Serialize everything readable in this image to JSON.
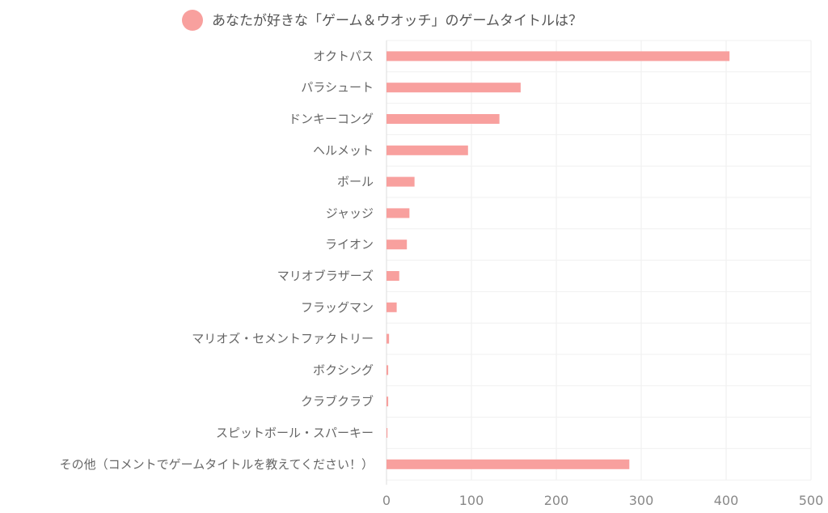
{
  "chart_data": {
    "type": "bar",
    "orientation": "horizontal",
    "categories": [
      "オクトパス",
      "パラシュート",
      "ドンキーコング",
      "ヘルメット",
      "ボール",
      "ジャッジ",
      "ライオン",
      "マリオブラザーズ",
      "フラッグマン",
      "マリオズ・セメントファクトリー",
      "ボクシング",
      "クラブクラブ",
      "スピットボール・スパーキー",
      "その他（コメントでゲームタイトルを教えてください！）"
    ],
    "series": [
      {
        "name": "あなたが好きな「ゲーム＆ウオッチ」のゲームタイトルは？",
        "values": [
          404,
          158,
          133,
          96,
          33,
          27,
          24,
          15,
          12,
          3,
          2,
          2,
          1,
          286
        ],
        "color": "#f8a09e"
      }
    ],
    "xlim": [
      0,
      500
    ],
    "xticks": [
      0,
      100,
      200,
      300,
      400,
      500
    ],
    "grid": true,
    "legend_position": "top"
  }
}
